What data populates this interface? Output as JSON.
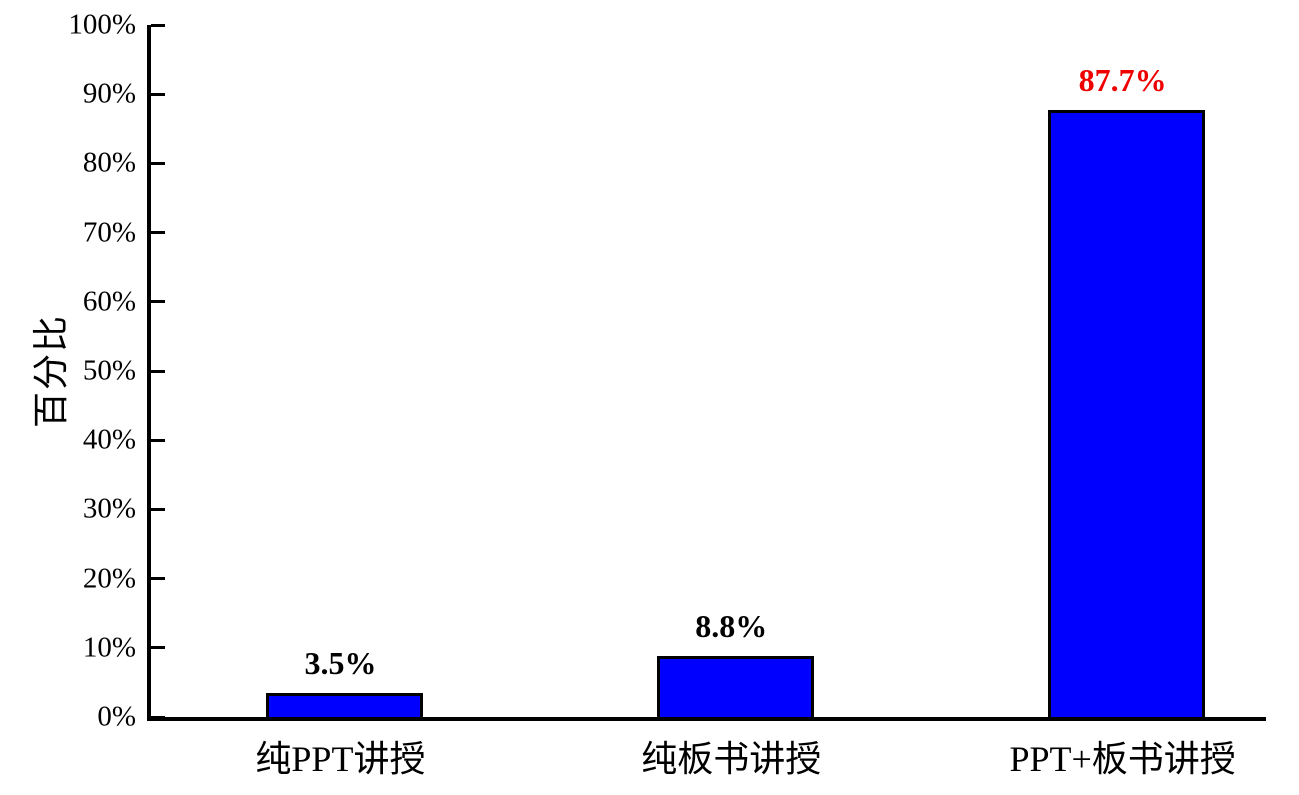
{
  "chart_data": {
    "type": "bar",
    "title": "",
    "categories": [
      "纯PPT讲授",
      "纯板书讲授",
      "PPT+板书讲授"
    ],
    "values": [
      3.5,
      8.8,
      87.7
    ],
    "value_labels": [
      "3.5%",
      "8.8%",
      "87.7%"
    ],
    "value_label_colors": [
      "#000000",
      "#000000",
      "#ee0000"
    ],
    "xlabel": "",
    "ylabel": "百分比",
    "ylim": [
      0,
      100
    ],
    "ytick_step": 10,
    "ytick_labels": [
      "0%",
      "10%",
      "20%",
      "30%",
      "40%",
      "50%",
      "60%",
      "70%",
      "80%",
      "90%",
      "100%"
    ],
    "bar_color": "#0000ff",
    "bar_border_color": "#000000",
    "grid": false,
    "legend_position": "none",
    "background_color": "#ffffff"
  }
}
